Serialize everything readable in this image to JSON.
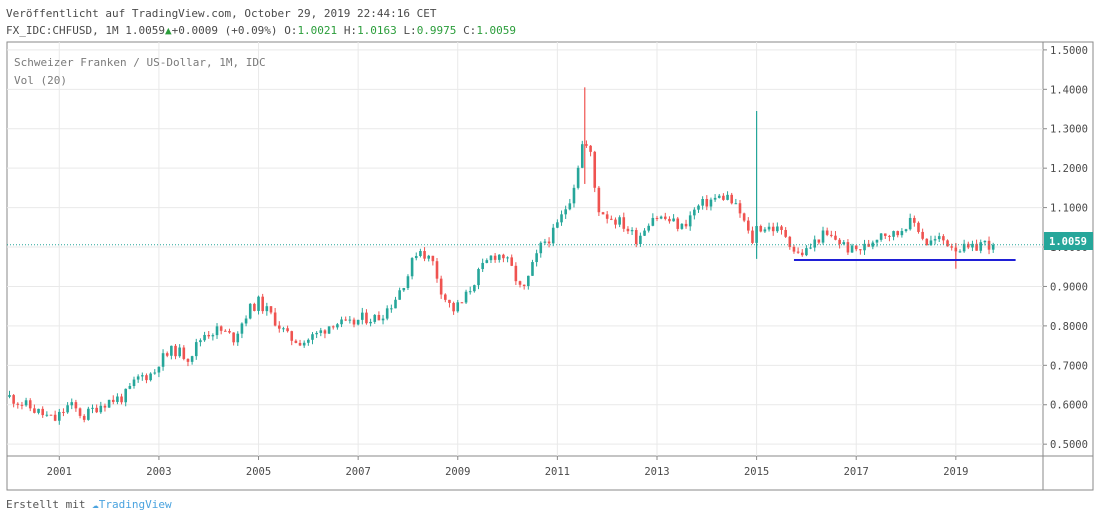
{
  "header": {
    "published": "Veröffentlicht auf TradingView.com, October 29, 2019 22:44:16 CET",
    "symbol": "FX_IDC:CHFUSD, 1M",
    "last": "1.0059",
    "change": "+0.0009 (+0.09%)",
    "open_label": "O:",
    "open": "1.0021",
    "high_label": "H:",
    "high": "1.0163",
    "low_label": "L:",
    "low": "0.9975",
    "close_label": "C:",
    "close": "1.0059"
  },
  "legend": {
    "series_title": "Schweizer Franken / US-Dollar, 1M, IDC",
    "indicator": "Vol (20)"
  },
  "footer": {
    "prefix": "Erstellt mit",
    "brand": "TradingView"
  },
  "colors": {
    "up": "#26a69a",
    "down": "#ef5350",
    "support_line": "#1f1fd6",
    "price_line": "#26a69a",
    "grid": "#e9e9e9"
  },
  "icons": {
    "change_arrow": "triangle-up-icon",
    "brand_logo": "tradingview-cloud-icon"
  },
  "chart_data": {
    "type": "candlestick",
    "title": "Schweizer Franken / US-Dollar, 1M, IDC",
    "interval": "1M",
    "ylim": [
      0.47,
      1.52
    ],
    "y_ticks": [
      "1.5000",
      "1.4000",
      "1.3000",
      "1.2000",
      "1.1000",
      "1.0000",
      "0.9000",
      "0.8000",
      "0.7000",
      "0.6000",
      "0.5000"
    ],
    "x_ticks": [
      "2001",
      "2003",
      "2005",
      "2007",
      "2009",
      "2011",
      "2013",
      "2015",
      "2017",
      "2019"
    ],
    "x_tick_years": [
      2001,
      2003,
      2005,
      2007,
      2009,
      2011,
      2013,
      2015,
      2017,
      2019
    ],
    "xlim": [
      1999.95,
      2020.75
    ],
    "current_price": "1.0059",
    "current_price_value": 1.0059,
    "horizontal_line": {
      "value": 0.967,
      "from": 2015.75,
      "to": 2020.2
    },
    "close_path": [
      [
        2000.0,
        0.62
      ],
      [
        2000.3,
        0.6
      ],
      [
        2000.6,
        0.58
      ],
      [
        2000.9,
        0.56
      ],
      [
        2001.2,
        0.6
      ],
      [
        2001.5,
        0.57
      ],
      [
        2001.8,
        0.6
      ],
      [
        2002.0,
        0.61
      ],
      [
        2002.3,
        0.62
      ],
      [
        2002.6,
        0.67
      ],
      [
        2002.9,
        0.68
      ],
      [
        2003.0,
        0.71
      ],
      [
        2003.3,
        0.74
      ],
      [
        2003.6,
        0.72
      ],
      [
        2003.9,
        0.78
      ],
      [
        2004.2,
        0.79
      ],
      [
        2004.5,
        0.77
      ],
      [
        2004.8,
        0.84
      ],
      [
        2005.0,
        0.86
      ],
      [
        2005.3,
        0.82
      ],
      [
        2005.6,
        0.77
      ],
      [
        2005.9,
        0.76
      ],
      [
        2006.2,
        0.78
      ],
      [
        2006.5,
        0.81
      ],
      [
        2006.8,
        0.8
      ],
      [
        2007.1,
        0.82
      ],
      [
        2007.4,
        0.82
      ],
      [
        2007.7,
        0.86
      ],
      [
        2008.0,
        0.93
      ],
      [
        2008.2,
        1.0
      ],
      [
        2008.5,
        0.96
      ],
      [
        2008.7,
        0.88
      ],
      [
        2008.9,
        0.84
      ],
      [
        2009.1,
        0.86
      ],
      [
        2009.4,
        0.93
      ],
      [
        2009.7,
        0.98
      ],
      [
        2009.9,
        0.98
      ],
      [
        2010.1,
        0.94
      ],
      [
        2010.3,
        0.88
      ],
      [
        2010.5,
        0.95
      ],
      [
        2010.7,
        1.01
      ],
      [
        2010.9,
        1.03
      ],
      [
        2011.1,
        1.08
      ],
      [
        2011.3,
        1.14
      ],
      [
        2011.5,
        1.26
      ],
      [
        2011.65,
        1.25
      ],
      [
        2011.8,
        1.1
      ],
      [
        2012.0,
        1.08
      ],
      [
        2012.3,
        1.06
      ],
      [
        2012.6,
        1.02
      ],
      [
        2012.9,
        1.08
      ],
      [
        2013.2,
        1.07
      ],
      [
        2013.5,
        1.05
      ],
      [
        2013.8,
        1.1
      ],
      [
        2014.1,
        1.12
      ],
      [
        2014.4,
        1.13
      ],
      [
        2014.7,
        1.08
      ],
      [
        2014.9,
        1.01
      ],
      [
        2015.0,
        1.05
      ],
      [
        2015.3,
        1.05
      ],
      [
        2015.6,
        1.03
      ],
      [
        2015.8,
        0.98
      ],
      [
        2016.0,
        0.99
      ],
      [
        2016.3,
        1.03
      ],
      [
        2016.6,
        1.02
      ],
      [
        2016.9,
        0.99
      ],
      [
        2017.2,
        1.0
      ],
      [
        2017.5,
        1.04
      ],
      [
        2017.8,
        1.03
      ],
      [
        2018.0,
        1.06
      ],
      [
        2018.2,
        1.06
      ],
      [
        2018.4,
        1.01
      ],
      [
        2018.7,
        1.02
      ],
      [
        2019.0,
        1.0
      ],
      [
        2019.3,
        0.99
      ],
      [
        2019.5,
        1.01
      ],
      [
        2019.75,
        1.0059
      ]
    ],
    "spikes": [
      {
        "x": 2011.55,
        "low": 1.16,
        "high": 1.405
      },
      {
        "x": 2015.0,
        "low": 0.97,
        "high": 1.345
      },
      {
        "x": 2019.0,
        "low": 0.945,
        "high": 1.01
      }
    ]
  }
}
